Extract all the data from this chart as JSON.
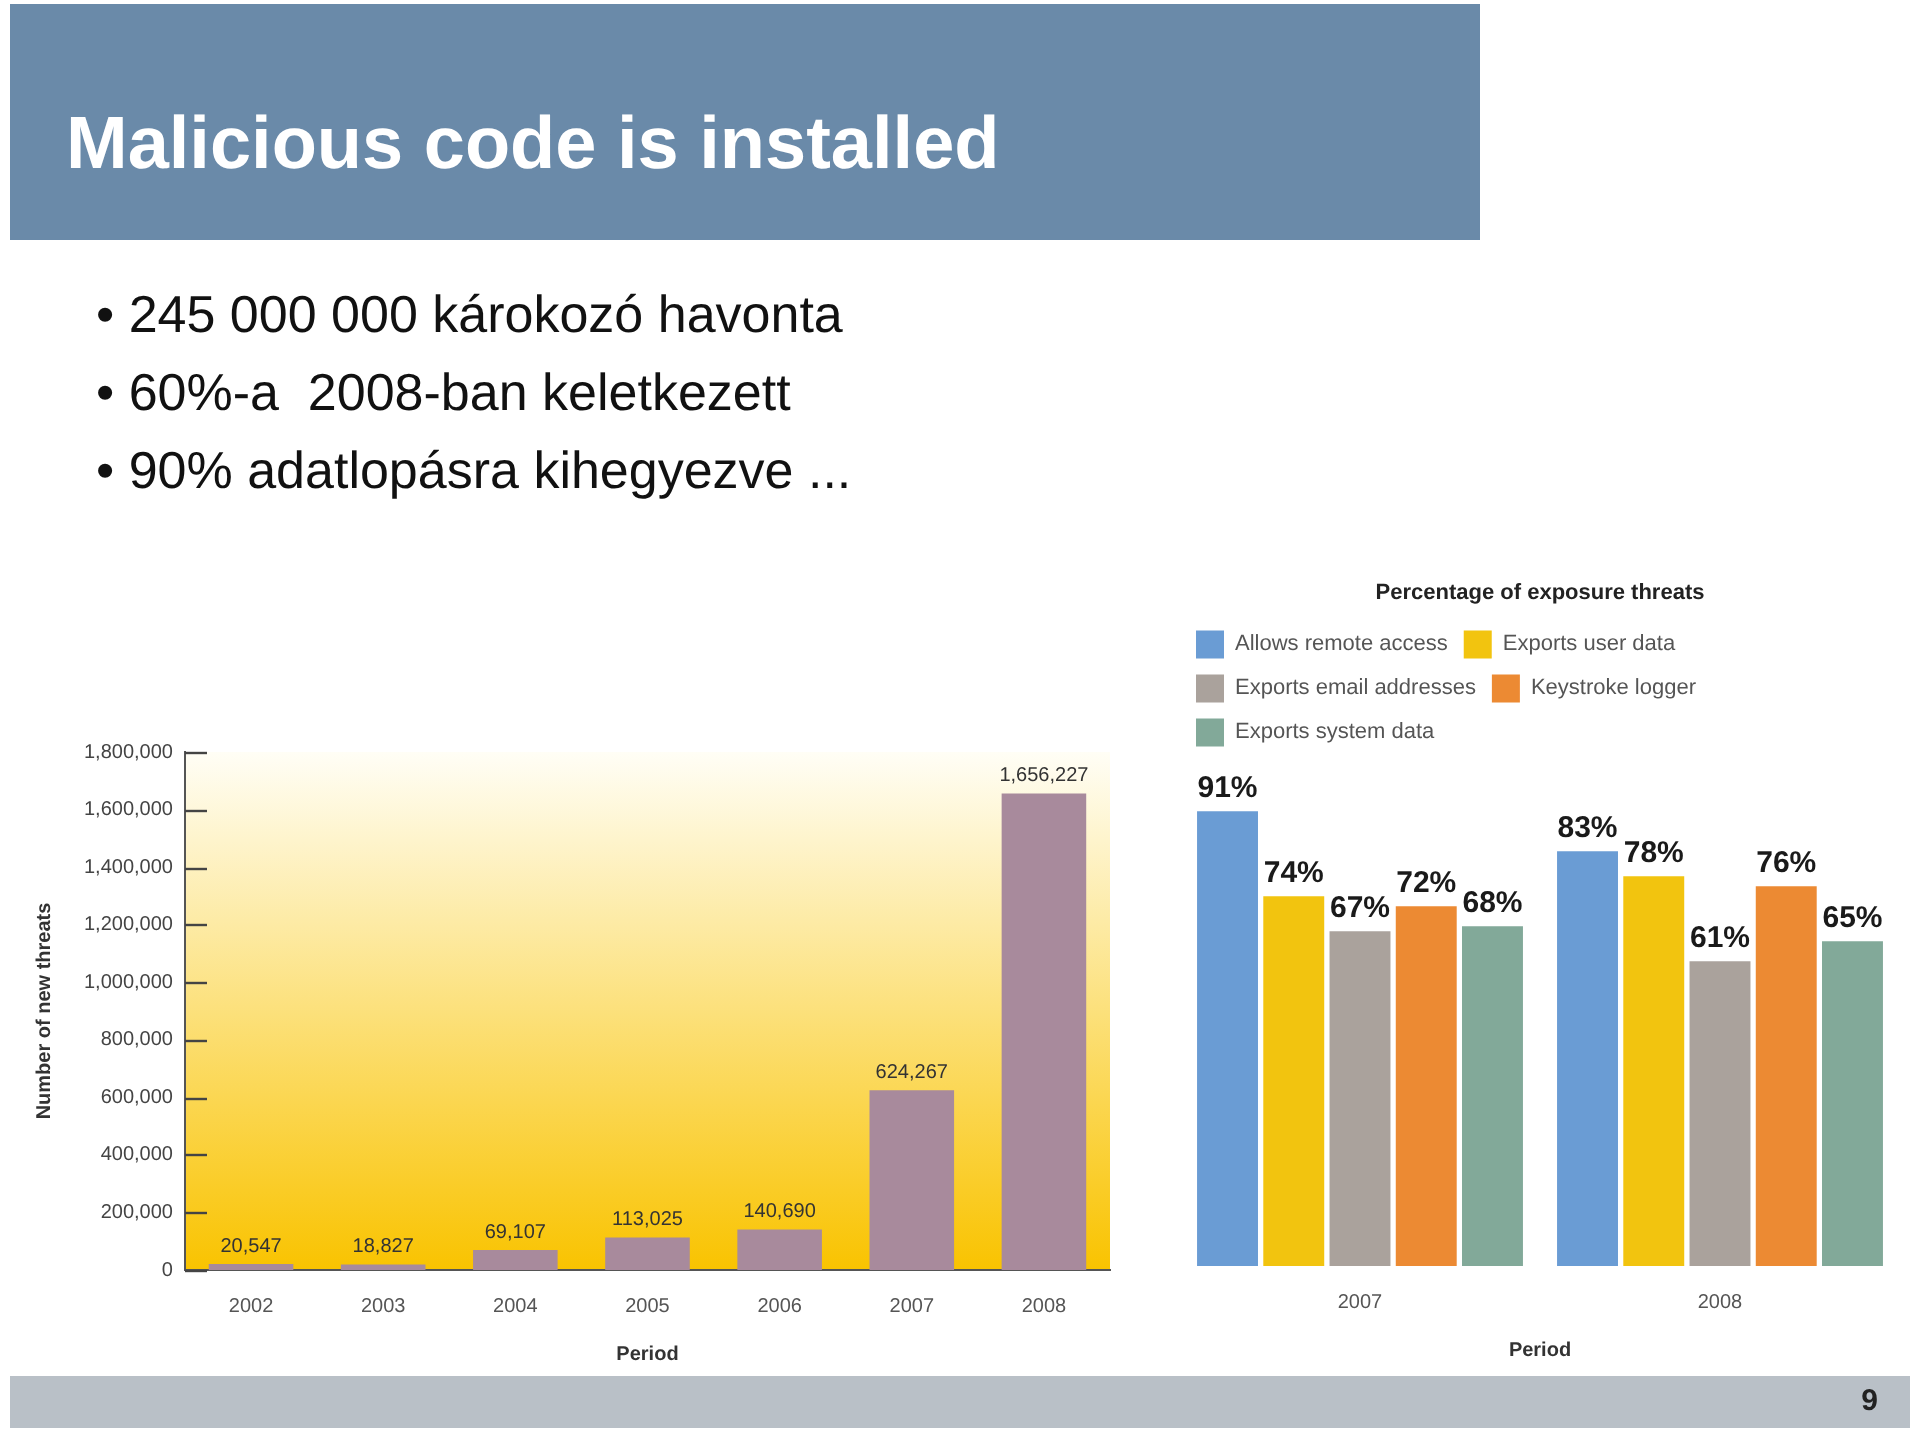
{
  "chart_data": [
    {
      "type": "bar",
      "title": "Malicious code is installed",
      "annotations": [
        "• 245 000 000 károkozó havonta",
        "• 60%-a  2008-ban keletkezett",
        "• 90% adatlopásra kihegyezve ..."
      ],
      "categories": [
        "2002",
        "2003",
        "2004",
        "2005",
        "2006",
        "2007",
        "2008"
      ],
      "values": [
        20547,
        18827,
        69107,
        113025,
        140690,
        624267,
        1656227
      ],
      "value_labels": [
        "20,547",
        "18,827",
        "69,107",
        "113,025",
        "140,690",
        "624,267",
        "1,656,227"
      ],
      "color": "#a88a9c",
      "ylim": [
        0,
        1800000
      ],
      "yticks": [
        0,
        {
          "value": 200000,
          "label": "200,000"
        },
        {
          "value": 400000,
          "label": "400,000"
        },
        {
          "value": 600000,
          "label": "600,000"
        },
        {
          "value": 800000,
          "label": "800,000"
        },
        {
          "value": 1000000,
          "label": "1,000,000"
        },
        {
          "value": 1200000,
          "label": "1,200,000"
        },
        {
          "value": 1400000,
          "label": "1,400,000"
        },
        {
          "value": 1600000,
          "label": "1,600,000"
        },
        {
          "value": 1800000,
          "label": "1,800,000"
        }
      ],
      "xlabel": "Period",
      "ylabel": "Number of new threats"
    },
    {
      "type": "bar",
      "title": "Percentage of exposure threats",
      "annotations": [
        "9"
      ],
      "categories": [
        "2007",
        "2008"
      ],
      "series": [
        {
          "name": "Allows remote access",
          "color": "#6a9cd4",
          "values": [
            91,
            83
          ],
          "value_labels": [
            "91%",
            "83%"
          ]
        },
        {
          "name": "Exports user data",
          "color": "#f2c40f",
          "values": [
            74,
            78
          ],
          "value_labels": [
            "74%",
            "78%"
          ]
        },
        {
          "name": "Exports email addresses",
          "color": "#aaa29c",
          "values": [
            67,
            61
          ],
          "value_labels": [
            "67%",
            "61%"
          ]
        },
        {
          "name": "Keystroke logger",
          "color": "#ec8a33",
          "values": [
            72,
            76
          ],
          "value_labels": [
            "72%",
            "76%"
          ]
        },
        {
          "name": "Exports system data",
          "color": "#82a999",
          "values": [
            68,
            65
          ],
          "value_labels": [
            "68%",
            "65%"
          ]
        }
      ],
      "xlabel": "Period",
      "legend": "top",
      "tick_labels": "x"
    }
  ]
}
